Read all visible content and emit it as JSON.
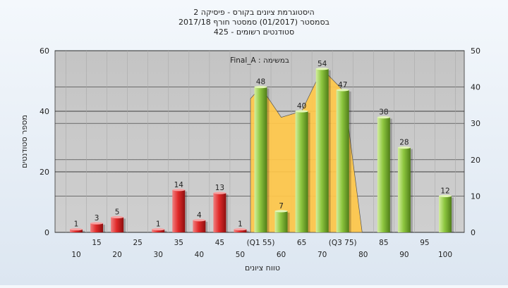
{
  "chart_data": {
    "type": "bar",
    "title": [
      "היסטוגרמת ציונים בקורס - פיסיקה 2",
      "בסמסטר  (01/2017)  סמסטר חורף 2017/18",
      "סטודנטים רשומים - 425"
    ],
    "xlabel": "טווח ציונים",
    "ylabel": "מספר סטודנטים",
    "ylim": [
      0,
      60
    ],
    "y2lim": [
      0,
      50
    ],
    "y_ticks": [
      "0",
      "20",
      "40",
      "60"
    ],
    "y2_ticks": [
      "0",
      "10",
      "20",
      "30",
      "40",
      "50"
    ],
    "categories": [
      "10",
      "15",
      "20",
      "25",
      "30",
      "35",
      "40",
      "45",
      "50",
      "(Q1 55)",
      "60",
      "65",
      "70",
      "(Q3 75)",
      "80",
      "85",
      "90",
      "95",
      "100"
    ],
    "values": [
      1,
      3,
      5,
      0,
      1,
      14,
      4,
      13,
      1,
      48,
      7,
      40,
      54,
      47,
      0,
      38,
      28,
      0,
      12
    ],
    "value_labels": [
      "1",
      "3",
      "5",
      "",
      "1",
      "14",
      "4",
      "13",
      "1",
      "48",
      "7",
      "40",
      "54",
      "47",
      "",
      "38",
      "28",
      "",
      "12"
    ],
    "pass_from": "(Q1 55)",
    "fail_color": "#d42a2a",
    "pass_color": "#8dc63f",
    "area_color": "#ffc84a",
    "area_annotation": "Final_A : במשימה",
    "grid": true
  }
}
